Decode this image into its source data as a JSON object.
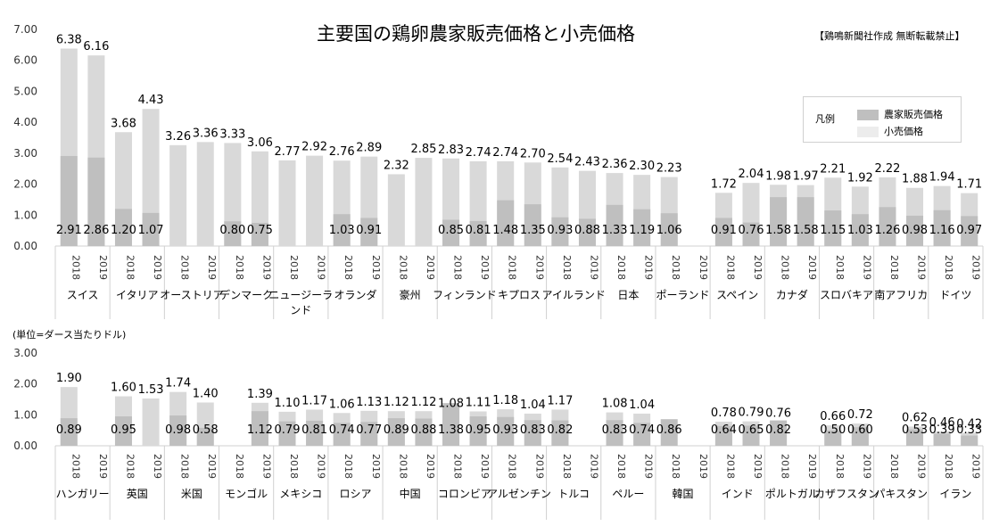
{
  "title": "主要国の鶏卵農家販売価格と小売価格",
  "note": "【鶏鳴新聞社作成 無断転載禁止】",
  "unit_label": "(単位=ダース当たりドル)",
  "legend": {
    "title": "凡例",
    "items": [
      {
        "label": "農家販売価格",
        "color": "#bfbfbf"
      },
      {
        "label": "小売価格",
        "color": "#e8e8e8"
      }
    ]
  },
  "colors": {
    "farm": "#bfbfbf",
    "retail": "#d9d9d9",
    "axis": "#d0d0d0"
  },
  "chart_data": [
    {
      "type": "bar",
      "stacking": "overlapped",
      "ylim": [
        0,
        7
      ],
      "yticks": [
        "0.00",
        "1.00",
        "2.00",
        "3.00",
        "4.00",
        "5.00",
        "6.00",
        "7.00"
      ],
      "year_labels": [
        "2018",
        "2019"
      ],
      "countries": [
        {
          "name": "スイス",
          "retail": [
            6.38,
            6.16
          ],
          "retail_label": [
            "6.38",
            "6.16"
          ],
          "farm": [
            2.91,
            2.86
          ],
          "farm_label": [
            "2.91",
            "2.86"
          ]
        },
        {
          "name": "イタリア",
          "retail": [
            3.68,
            4.43
          ],
          "retail_label": [
            "3.68",
            "4.43"
          ],
          "farm": [
            1.2,
            1.07
          ],
          "farm_label": [
            "1.20",
            "1.07"
          ]
        },
        {
          "name": "オーストリア",
          "retail": [
            3.26,
            3.36
          ],
          "retail_label": [
            "3.26",
            "3.36"
          ],
          "farm": [
            null,
            null
          ],
          "farm_label": [
            "",
            ""
          ]
        },
        {
          "name": "デンマーク",
          "retail": [
            3.33,
            3.06
          ],
          "retail_label": [
            "3.33",
            "3.06"
          ],
          "farm": [
            0.8,
            0.75
          ],
          "farm_label": [
            "0.80",
            "0.75"
          ]
        },
        {
          "name": "ニュージーランド",
          "retail": [
            2.77,
            2.92
          ],
          "retail_label": [
            "2.77",
            "2.92"
          ],
          "farm": [
            null,
            null
          ],
          "farm_label": [
            "",
            ""
          ]
        },
        {
          "name": "オランダ",
          "retail": [
            2.76,
            2.89
          ],
          "retail_label": [
            "2.76",
            "2.89"
          ],
          "farm": [
            1.03,
            0.91
          ],
          "farm_label": [
            "1.03",
            "0.91"
          ]
        },
        {
          "name": "豪州",
          "retail": [
            2.32,
            2.85
          ],
          "retail_label": [
            "2.32",
            "2.85"
          ],
          "farm": [
            null,
            null
          ],
          "farm_label": [
            "",
            ""
          ]
        },
        {
          "name": "フィンランド",
          "retail": [
            2.83,
            2.74
          ],
          "retail_label": [
            "2.83",
            "2.74"
          ],
          "farm": [
            0.85,
            0.81
          ],
          "farm_label": [
            "0.85",
            "0.81"
          ]
        },
        {
          "name": "キプロス",
          "retail": [
            2.74,
            2.7
          ],
          "retail_label": [
            "2.74",
            "2.70"
          ],
          "farm": [
            1.48,
            1.35
          ],
          "farm_label": [
            "1.48",
            "1.35"
          ]
        },
        {
          "name": "アイルランド",
          "retail": [
            2.54,
            2.43
          ],
          "retail_label": [
            "2.54",
            "2.43"
          ],
          "farm": [
            0.93,
            0.88
          ],
          "farm_label": [
            "0.93",
            "0.88"
          ]
        },
        {
          "name": "日本",
          "retail": [
            2.36,
            2.3
          ],
          "retail_label": [
            "2.36",
            "2.30"
          ],
          "farm": [
            1.33,
            1.19
          ],
          "farm_label": [
            "1.33",
            "1.19"
          ]
        },
        {
          "name": "ポーランド",
          "retail": [
            2.23,
            null
          ],
          "retail_label": [
            "2.23",
            ""
          ],
          "farm": [
            1.06,
            null
          ],
          "farm_label": [
            "1.06",
            ""
          ]
        },
        {
          "name": "スペイン",
          "retail": [
            1.72,
            2.04
          ],
          "retail_label": [
            "1.72",
            "2.04"
          ],
          "farm": [
            0.91,
            0.76
          ],
          "farm_label": [
            "0.91",
            "0.76"
          ]
        },
        {
          "name": "カナダ",
          "retail": [
            1.98,
            1.97
          ],
          "retail_label": [
            "1.98",
            "1.97"
          ],
          "farm": [
            1.58,
            1.58
          ],
          "farm_label": [
            "1.58",
            "1.58"
          ]
        },
        {
          "name": "スロバキア",
          "retail": [
            2.21,
            1.92
          ],
          "retail_label": [
            "2.21",
            "1.92"
          ],
          "farm": [
            1.15,
            1.03
          ],
          "farm_label": [
            "1.15",
            "1.03"
          ]
        },
        {
          "name": "南アフリカ",
          "retail": [
            2.22,
            1.88
          ],
          "retail_label": [
            "2.22",
            "1.88"
          ],
          "farm": [
            1.26,
            0.98
          ],
          "farm_label": [
            "1.26",
            "0.98"
          ]
        },
        {
          "name": "ドイツ",
          "retail": [
            1.94,
            1.71
          ],
          "retail_label": [
            "1.94",
            "1.71"
          ],
          "farm": [
            1.16,
            0.97
          ],
          "farm_label": [
            "1.16",
            "0.97"
          ]
        }
      ]
    },
    {
      "type": "bar",
      "stacking": "overlapped",
      "ylim": [
        0,
        3
      ],
      "yticks": [
        "0.00",
        "1.00",
        "2.00",
        "3.00"
      ],
      "year_labels": [
        "2018",
        "2019"
      ],
      "countries": [
        {
          "name": "ハンガリー",
          "retail": [
            1.9,
            null
          ],
          "retail_label": [
            "1.90",
            ""
          ],
          "farm": [
            0.89,
            null
          ],
          "farm_label": [
            "0.89",
            ""
          ]
        },
        {
          "name": "英国",
          "retail": [
            1.6,
            1.53
          ],
          "retail_label": [
            "1.60",
            "1.53"
          ],
          "farm": [
            0.95,
            null
          ],
          "farm_label": [
            "0.95",
            ""
          ]
        },
        {
          "name": "米国",
          "retail": [
            1.74,
            1.4
          ],
          "retail_label": [
            "1.74",
            "1.40"
          ],
          "farm": [
            0.98,
            0.58
          ],
          "farm_label": [
            "0.98",
            "0.58"
          ]
        },
        {
          "name": "モンゴル",
          "retail": [
            null,
            1.39
          ],
          "retail_label": [
            "",
            "1.39"
          ],
          "farm": [
            null,
            1.12
          ],
          "farm_label": [
            "",
            "1.12"
          ]
        },
        {
          "name": "メキシコ",
          "retail": [
            1.1,
            1.17
          ],
          "retail_label": [
            "1.10",
            "1.17"
          ],
          "farm": [
            0.79,
            0.81
          ],
          "farm_label": [
            "0.79",
            "0.81"
          ]
        },
        {
          "name": "ロシア",
          "retail": [
            1.06,
            1.13
          ],
          "retail_label": [
            "1.06",
            "1.13"
          ],
          "farm": [
            0.74,
            0.77
          ],
          "farm_label": [
            "0.74",
            "0.77"
          ]
        },
        {
          "name": "中国",
          "retail": [
            1.12,
            1.12
          ],
          "retail_label": [
            "1.12",
            "1.12"
          ],
          "farm": [
            0.89,
            0.88
          ],
          "farm_label": [
            "0.89",
            "0.88"
          ]
        },
        {
          "name": "コロンビア",
          "retail": [
            1.08,
            1.11
          ],
          "retail_label": [
            "1.08",
            "1.11"
          ],
          "farm": [
            1.38,
            0.95
          ],
          "farm_label": [
            "1.38",
            "0.95"
          ]
        },
        {
          "name": "アルゼンチン",
          "retail": [
            1.18,
            1.04
          ],
          "retail_label": [
            "1.18",
            "1.04"
          ],
          "farm": [
            0.93,
            0.83
          ],
          "farm_label": [
            "0.93",
            "0.83"
          ]
        },
        {
          "name": "トルコ",
          "retail": [
            1.17,
            null
          ],
          "retail_label": [
            "1.17",
            ""
          ],
          "farm": [
            0.82,
            null
          ],
          "farm_label": [
            "0.82",
            ""
          ]
        },
        {
          "name": "ペルー",
          "retail": [
            1.08,
            1.04
          ],
          "retail_label": [
            "1.08",
            "1.04"
          ],
          "farm": [
            0.83,
            0.74
          ],
          "farm_label": [
            "0.83",
            "0.74"
          ]
        },
        {
          "name": "韓国",
          "retail": [
            null,
            null
          ],
          "retail_label": [
            "",
            ""
          ],
          "farm": [
            0.86,
            null
          ],
          "farm_label": [
            "0.86",
            ""
          ]
        },
        {
          "name": "インド",
          "retail": [
            0.78,
            0.79
          ],
          "retail_label": [
            "0.78",
            "0.79"
          ],
          "farm": [
            0.64,
            0.65
          ],
          "farm_label": [
            "0.64",
            "0.65"
          ]
        },
        {
          "name": "ポルトガル",
          "retail": [
            0.76,
            null
          ],
          "retail_label": [
            "0.76",
            ""
          ],
          "farm": [
            0.82,
            null
          ],
          "farm_label": [
            "0.82",
            ""
          ]
        },
        {
          "name": "カザフスタン",
          "retail": [
            0.66,
            0.72
          ],
          "retail_label": [
            "0.66",
            "0.72"
          ],
          "farm": [
            0.5,
            0.6
          ],
          "farm_label": [
            "0.50",
            "0.60"
          ]
        },
        {
          "name": "パキスタン",
          "retail": [
            null,
            0.62
          ],
          "retail_label": [
            "",
            "0.62"
          ],
          "farm": [
            null,
            0.53
          ],
          "farm_label": [
            "",
            "0.53"
          ]
        },
        {
          "name": "イラン",
          "retail": [
            0.46,
            0.42
          ],
          "retail_label": [
            "0.46",
            "0.42"
          ],
          "farm": [
            0.39,
            0.33
          ],
          "farm_label": [
            "0.39",
            "0.33"
          ]
        }
      ]
    }
  ]
}
